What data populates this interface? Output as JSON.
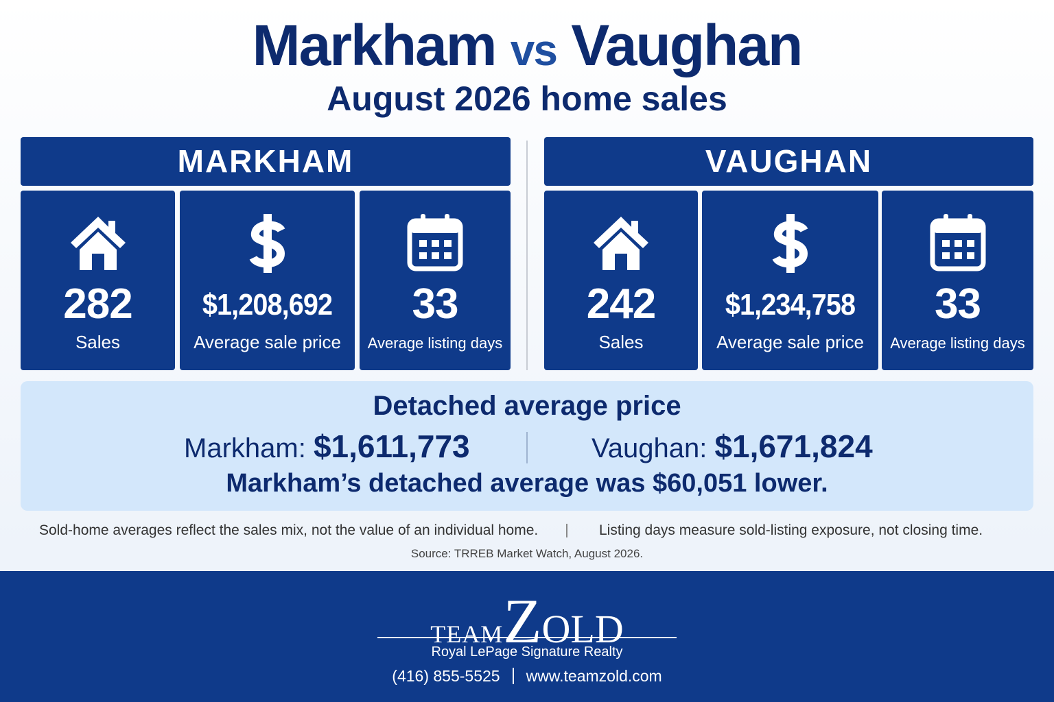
{
  "header": {
    "title_left": "Markham",
    "title_vs": "vs",
    "title_right": "Vaughan",
    "subtitle": "August 2026 home sales"
  },
  "panels": [
    {
      "name": "MARKHAM",
      "stats": [
        {
          "value": "282",
          "label": "Sales"
        },
        {
          "value": "$1,208,692",
          "label": "Average sale price"
        },
        {
          "value": "33",
          "label": "Average listing days"
        }
      ]
    },
    {
      "name": "VAUGHAN",
      "stats": [
        {
          "value": "242",
          "label": "Sales"
        },
        {
          "value": "$1,234,758",
          "label": "Average sale price"
        },
        {
          "value": "33",
          "label": "Average listing days"
        }
      ]
    }
  ],
  "detached": {
    "title": "Detached average price",
    "items": [
      {
        "label": "Markham:",
        "value": "$1,611,773"
      },
      {
        "label": "Vaughan:",
        "value": "$1,671,824"
      }
    ],
    "note": "Markham’s detached average was $60,051 lower."
  },
  "footnotes": [
    "Sold-home averages reflect the sales mix, not the value of an individual home.",
    "Listing days measure sold-listing exposure, not closing time."
  ],
  "source": "Source: TRREB Market Watch, August 2026.",
  "footer": {
    "brand_team": "TEAM",
    "brand_name": "ZOLD",
    "company": "Royal LePage Signature Realty",
    "phone": "(416) 855-5525",
    "website": "www.teamzold.com"
  }
}
